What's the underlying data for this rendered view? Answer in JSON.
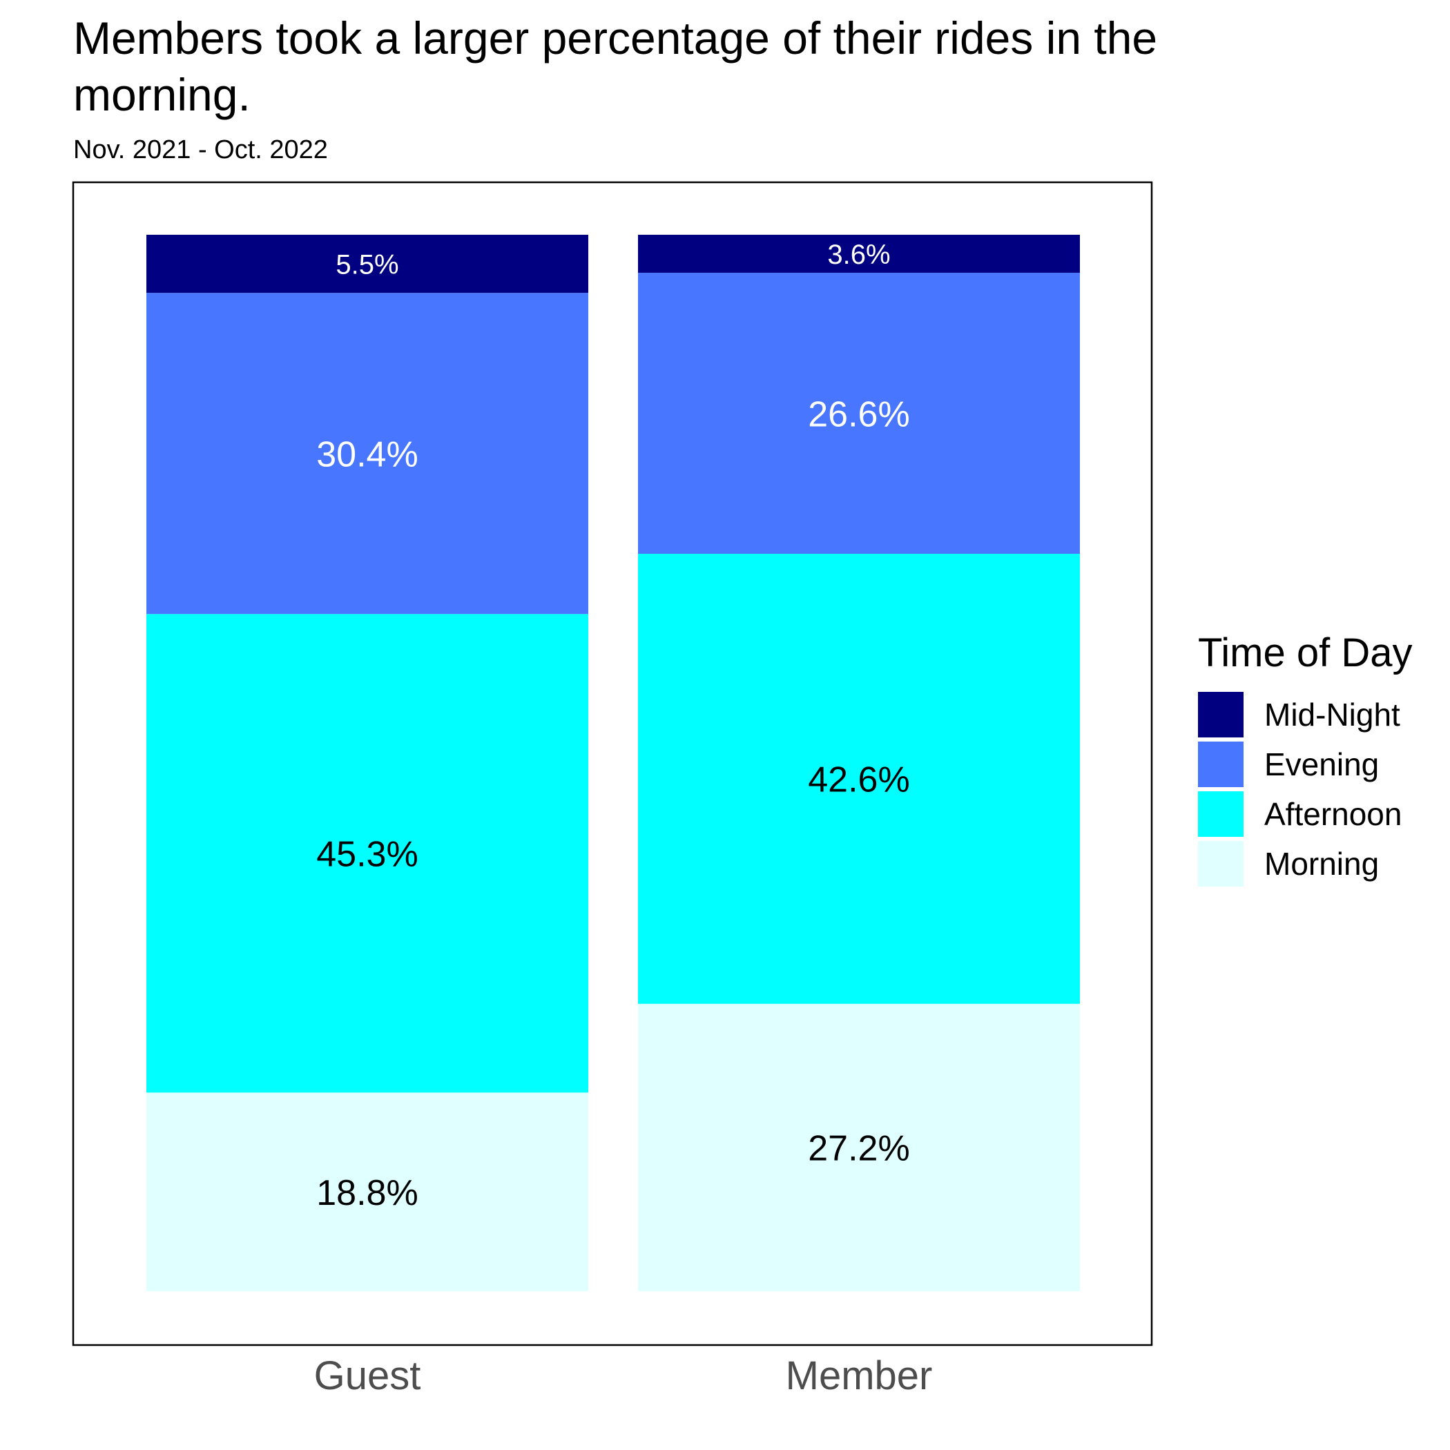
{
  "chart_data": {
    "type": "bar",
    "stacked": true,
    "title": "Members took a larger percentage of their rides in the morning.",
    "subtitle": "Nov. 2021 - Oct. 2022",
    "categories": [
      "Guest",
      "Member"
    ],
    "ylim": [
      0,
      100
    ],
    "grid": false,
    "legend": {
      "title": "Time of Day",
      "placement": "right",
      "entries": [
        "Mid-Night",
        "Evening",
        "Afternoon",
        "Morning"
      ]
    },
    "series": [
      {
        "name": "Morning",
        "values": [
          18.8,
          27.2
        ],
        "labels": [
          "18.8%",
          "27.2%"
        ],
        "color": "#E0FFFF",
        "label_color": "#000000"
      },
      {
        "name": "Afternoon",
        "values": [
          45.3,
          42.6
        ],
        "labels": [
          "45.3%",
          "42.6%"
        ],
        "color": "#00FFFF",
        "label_color": "#000000"
      },
      {
        "name": "Evening",
        "values": [
          30.4,
          26.6
        ],
        "labels": [
          "30.4%",
          "26.6%"
        ],
        "color": "#4876FF",
        "label_color": "#ffffff"
      },
      {
        "name": "Mid-Night",
        "values": [
          5.5,
          3.6
        ],
        "labels": [
          "5.5%",
          "3.6%"
        ],
        "color": "#000080",
        "label_color": "#ffffff"
      }
    ]
  }
}
